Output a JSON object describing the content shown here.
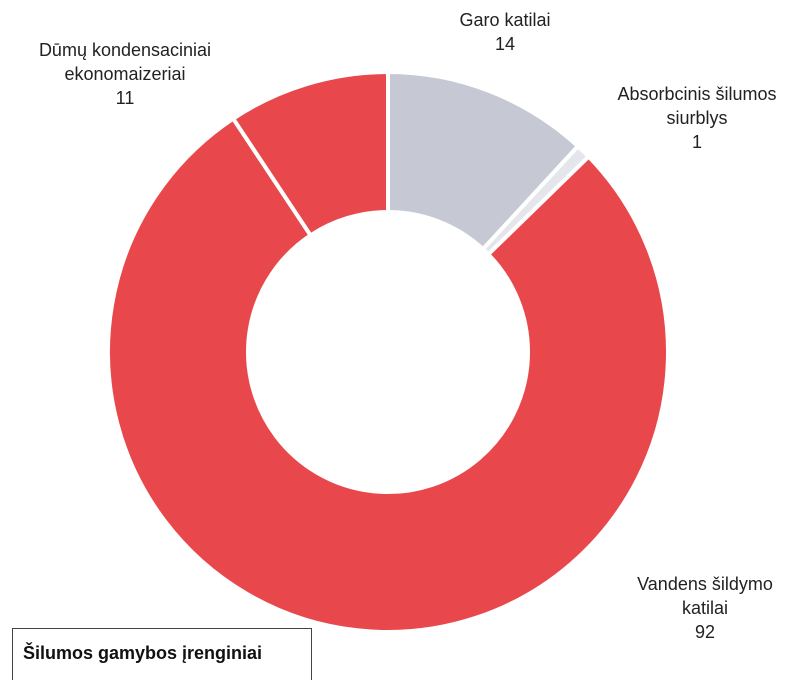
{
  "chart_data": {
    "type": "donut",
    "title": "Šilumos gamybos įrenginiai",
    "categories": [
      "Garo katilai",
      "Absorbcinis šilumos siurblys",
      "Vandens šildymo katilai",
      "Dūmų kondensaciniai ekonomaizeriai"
    ],
    "values": [
      14,
      1,
      92,
      11
    ],
    "colors": [
      "#c6c9d4",
      "#e4e6ec",
      "#e8484b",
      "#e8484b"
    ]
  }
}
